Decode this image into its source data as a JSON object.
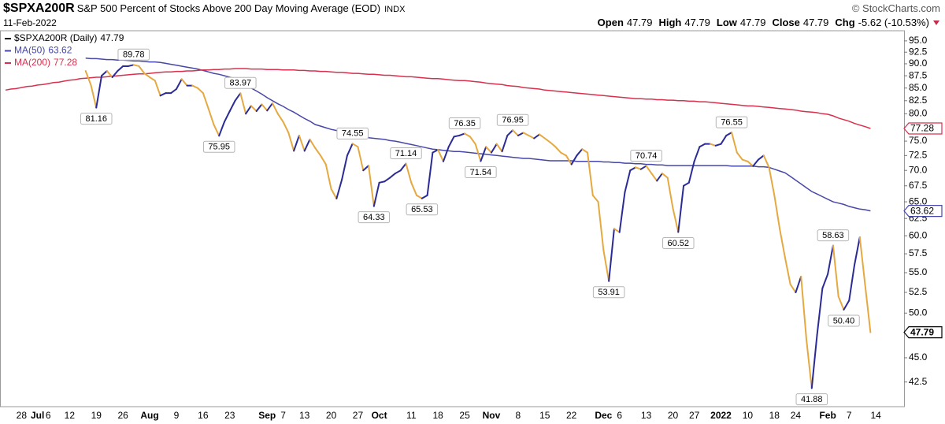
{
  "header": {
    "symbol": "$SPXA200R",
    "description": "S&P 500 Percent of Stocks Above 200 Day Moving Average (EOD)",
    "exchange": "INDX",
    "date": "11-Feb-2022",
    "source": "© StockCharts.com",
    "quote": [
      {
        "label": "Open",
        "value": 47.79
      },
      {
        "label": "High",
        "value": 47.79
      },
      {
        "label": "Low",
        "value": 47.79
      },
      {
        "label": "Close",
        "value": 47.79
      },
      {
        "label": "Chg",
        "value": "-5.62 (-10.53%)"
      }
    ]
  },
  "chart_data": {
    "type": "line",
    "log": true,
    "ylim": [
      40.1,
      97.3
    ],
    "yticks": [
      {
        "value": 42.5,
        "label": "42.5"
      },
      {
        "value": 45,
        "label": "45.0"
      },
      {
        "value": 50,
        "label": "50.0"
      },
      {
        "value": 52.5,
        "label": "52.5"
      },
      {
        "value": 55,
        "label": "55.0"
      },
      {
        "value": 57.5,
        "label": "57.5"
      },
      {
        "value": 60,
        "label": "60.0"
      },
      {
        "value": 62.5,
        "label": "62.5"
      },
      {
        "value": 65,
        "label": "65.0"
      },
      {
        "value": 67.5,
        "label": "67.5"
      },
      {
        "value": 70,
        "label": "70.0"
      },
      {
        "value": 72.5,
        "label": "72.5"
      },
      {
        "value": 75,
        "label": "75.0"
      },
      {
        "value": 77.5,
        "label": "77.5"
      },
      {
        "value": 80,
        "label": "80.0"
      },
      {
        "value": 82.5,
        "label": "82.5"
      },
      {
        "value": 85,
        "label": "85.0"
      },
      {
        "value": 87.5,
        "label": "87.5"
      },
      {
        "value": 90,
        "label": "90.0"
      },
      {
        "value": 92.5,
        "label": "92.5"
      },
      {
        "value": 95,
        "label": "95.0"
      }
    ],
    "categories": [
      null,
      null,
      null,
      "28",
      null,
      null,
      "Jul",
      null,
      "6",
      null,
      null,
      null,
      "12",
      null,
      null,
      null,
      null,
      "19",
      null,
      null,
      null,
      null,
      "26",
      null,
      null,
      null,
      null,
      "Aug",
      null,
      null,
      null,
      null,
      "9",
      null,
      null,
      null,
      null,
      "16",
      null,
      null,
      null,
      null,
      "23",
      null,
      null,
      null,
      null,
      null,
      null,
      "Sep",
      null,
      null,
      "7",
      null,
      null,
      null,
      "13",
      null,
      null,
      null,
      null,
      "20",
      null,
      null,
      null,
      null,
      "27",
      null,
      null,
      null,
      "Oct",
      null,
      null,
      null,
      null,
      null,
      "11",
      null,
      null,
      null,
      null,
      "18",
      null,
      null,
      null,
      null,
      "25",
      null,
      null,
      null,
      null,
      "Nov",
      null,
      null,
      null,
      null,
      "8",
      null,
      null,
      null,
      null,
      "15",
      null,
      null,
      null,
      null,
      "22",
      null,
      null,
      null,
      null,
      null,
      "Dec",
      null,
      null,
      "6",
      null,
      null,
      null,
      null,
      "13",
      null,
      null,
      null,
      null,
      "20",
      null,
      null,
      null,
      "27",
      null,
      null,
      null,
      null,
      "2022",
      null,
      null,
      null,
      null,
      "10",
      null,
      null,
      null,
      null,
      "18",
      null,
      null,
      null,
      "24",
      null,
      null,
      null,
      null,
      null,
      "Feb",
      null,
      null,
      null,
      "7",
      null,
      null,
      null,
      null,
      "14"
    ],
    "series": [
      {
        "name": "$SPXA200R (Daily)",
        "color": "#000000",
        "up_color": "#2b2b97",
        "down_color": "#e5a940",
        "values": [
          null,
          null,
          null,
          null,
          null,
          null,
          null,
          null,
          null,
          null,
          null,
          null,
          null,
          null,
          null,
          88.5,
          85.6,
          81.16,
          87.5,
          88.5,
          87.2,
          88.5,
          89.5,
          89.5,
          89.78,
          89.5,
          88.0,
          87.2,
          86.5,
          83.5,
          84.0,
          84.0,
          84.8,
          86.8,
          85.5,
          85.5,
          85.0,
          84.0,
          81.0,
          78.0,
          75.95,
          78.5,
          80.5,
          82.5,
          83.97,
          80.0,
          81.5,
          80.5,
          81.8,
          80.6,
          82.0,
          80.0,
          78.5,
          76.5,
          73.3,
          76.0,
          73.3,
          75.3,
          73.8,
          72.5,
          71.0,
          67.0,
          65.5,
          68.5,
          72.5,
          74.55,
          74.0,
          70.0,
          70.8,
          64.33,
          68.0,
          68.2,
          68.8,
          69.5,
          70.0,
          71.14,
          68.0,
          66.0,
          65.53,
          66.0,
          73.0,
          73.5,
          71.5,
          74.0,
          75.8,
          76.0,
          76.35,
          75.8,
          74.5,
          71.54,
          74.0,
          73.0,
          74.5,
          73.2,
          76.0,
          76.95,
          76.0,
          76.5,
          76.0,
          75.5,
          76.2,
          75.5,
          74.8,
          74.0,
          73.0,
          72.5,
          71.0,
          72.5,
          73.6,
          73.0,
          66.0,
          65.0,
          58.0,
          53.91,
          61.0,
          60.5,
          66.5,
          70.0,
          70.5,
          70.2,
          70.74,
          69.5,
          68.3,
          69.5,
          68.8,
          64.0,
          60.52,
          67.5,
          68.0,
          71.5,
          74.0,
          74.5,
          74.5,
          74.2,
          74.5,
          76.0,
          76.55,
          73.0,
          71.8,
          71.5,
          70.7,
          71.8,
          72.5,
          70.5,
          66.0,
          61.0,
          57.0,
          53.5,
          52.5,
          54.5,
          47.0,
          41.88,
          47.5,
          53.0,
          54.8,
          58.63,
          52.0,
          50.4,
          51.5,
          56.0,
          59.8,
          53.41,
          47.79,
          null
        ],
        "value_labels": [
          null,
          null,
          null,
          null,
          null,
          null,
          null,
          null,
          null,
          null,
          null,
          null,
          null,
          null,
          null,
          null,
          null,
          "81.16",
          null,
          null,
          null,
          null,
          null,
          null,
          "89.78",
          null,
          null,
          null,
          null,
          null,
          null,
          null,
          null,
          null,
          null,
          null,
          null,
          null,
          null,
          null,
          "75.95",
          null,
          null,
          null,
          "83.97",
          null,
          null,
          null,
          null,
          null,
          null,
          null,
          null,
          null,
          null,
          null,
          null,
          null,
          null,
          null,
          null,
          null,
          null,
          null,
          null,
          "74.55",
          null,
          null,
          null,
          "64.33",
          null,
          null,
          null,
          null,
          null,
          "71.14",
          null,
          null,
          "65.53",
          null,
          null,
          null,
          null,
          null,
          null,
          null,
          "76.35",
          null,
          null,
          "71.54",
          null,
          null,
          null,
          null,
          null,
          "76.95",
          null,
          null,
          null,
          null,
          null,
          null,
          null,
          null,
          null,
          null,
          null,
          null,
          null,
          null,
          null,
          null,
          null,
          "53.91",
          null,
          null,
          null,
          null,
          null,
          null,
          "70.74",
          null,
          null,
          null,
          null,
          null,
          "60.52",
          null,
          null,
          null,
          null,
          null,
          null,
          null,
          null,
          null,
          "76.55",
          null,
          null,
          null,
          null,
          null,
          null,
          null,
          null,
          null,
          null,
          null,
          null,
          null,
          null,
          "41.88",
          null,
          null,
          null,
          "58.63",
          null,
          "50.40",
          null,
          null,
          null,
          null,
          null,
          null
        ]
      },
      {
        "name": "MA(50)",
        "color": "#4747a8",
        "values": [
          null,
          null,
          null,
          null,
          null,
          null,
          null,
          null,
          null,
          null,
          null,
          null,
          null,
          null,
          null,
          91.2,
          91.1,
          91.1,
          91.0,
          90.9,
          90.9,
          90.8,
          90.8,
          90.7,
          90.6,
          90.6,
          90.5,
          90.4,
          90.4,
          90.3,
          90.1,
          89.9,
          89.7,
          89.5,
          89.3,
          89.1,
          88.9,
          88.6,
          88.3,
          88.0,
          87.8,
          87.5,
          87.2,
          86.9,
          86.3,
          85.6,
          85.0,
          84.4,
          83.8,
          83.1,
          82.5,
          81.9,
          81.4,
          80.8,
          80.3,
          79.7,
          79.1,
          78.6,
          78.0,
          77.7,
          77.4,
          77.1,
          76.9,
          76.6,
          76.3,
          76.0,
          75.9,
          75.8,
          75.6,
          75.5,
          75.4,
          75.3,
          75.1,
          75.0,
          74.8,
          74.6,
          74.4,
          74.2,
          74.0,
          73.8,
          73.6,
          73.5,
          73.4,
          73.3,
          73.2,
          73.2,
          73.1,
          73.0,
          72.9,
          72.8,
          72.7,
          72.6,
          72.5,
          72.4,
          72.3,
          72.2,
          72.1,
          72.0,
          72.0,
          71.9,
          71.8,
          71.7,
          71.6,
          71.6,
          71.6,
          71.6,
          71.6,
          71.5,
          71.5,
          71.5,
          71.5,
          71.5,
          71.4,
          71.4,
          71.3,
          71.3,
          71.2,
          71.2,
          71.1,
          71.1,
          71.0,
          71.0,
          70.9,
          70.9,
          70.8,
          70.8,
          70.8,
          70.8,
          70.8,
          70.8,
          70.8,
          70.8,
          70.8,
          70.8,
          70.8,
          70.8,
          70.7,
          70.7,
          70.7,
          70.7,
          70.7,
          70.6,
          70.6,
          70.5,
          70.2,
          69.9,
          69.6,
          69.0,
          68.4,
          67.8,
          67.2,
          66.6,
          66.2,
          65.8,
          65.4,
          65.0,
          64.8,
          64.6,
          64.3,
          64.1,
          63.9,
          63.8,
          63.62,
          null
        ]
      },
      {
        "name": "MA(200)",
        "color": "#d8304e",
        "values": [
          84.6,
          84.8,
          84.9,
          85.1,
          85.3,
          85.4,
          85.6,
          85.7,
          85.9,
          86.1,
          86.2,
          86.4,
          86.6,
          86.7,
          86.9,
          87.0,
          87.1,
          87.2,
          87.2,
          87.3,
          87.4,
          87.5,
          87.6,
          87.7,
          87.8,
          87.9,
          87.9,
          88.0,
          88.1,
          88.2,
          88.3,
          88.3,
          88.4,
          88.4,
          88.5,
          88.5,
          88.6,
          88.7,
          88.7,
          88.8,
          88.8,
          88.9,
          88.9,
          89.0,
          89.0,
          89.0,
          88.9,
          88.9,
          88.9,
          88.8,
          88.8,
          88.8,
          88.7,
          88.7,
          88.7,
          88.6,
          88.6,
          88.5,
          88.5,
          88.4,
          88.4,
          88.3,
          88.2,
          88.2,
          88.1,
          88.0,
          88.0,
          87.9,
          87.8,
          87.8,
          87.7,
          87.6,
          87.6,
          87.5,
          87.4,
          87.3,
          87.3,
          87.2,
          87.1,
          87.0,
          86.9,
          86.9,
          86.8,
          86.7,
          86.6,
          86.5,
          86.5,
          86.4,
          86.3,
          86.2,
          86.0,
          85.9,
          85.8,
          85.7,
          85.5,
          85.4,
          85.3,
          85.1,
          85.0,
          84.9,
          84.8,
          84.6,
          84.5,
          84.4,
          84.3,
          84.2,
          84.1,
          84.0,
          83.9,
          83.8,
          83.7,
          83.6,
          83.5,
          83.4,
          83.3,
          83.2,
          83.1,
          83.0,
          82.9,
          82.9,
          82.8,
          82.8,
          82.7,
          82.7,
          82.6,
          82.6,
          82.5,
          82.5,
          82.4,
          82.4,
          82.3,
          82.3,
          82.2,
          82.1,
          82.0,
          81.9,
          81.8,
          81.7,
          81.6,
          81.5,
          81.5,
          81.4,
          81.3,
          81.2,
          81.1,
          81.0,
          80.9,
          80.8,
          80.7,
          80.5,
          80.4,
          80.3,
          80.2,
          80.0,
          79.9,
          79.6,
          79.2,
          78.9,
          78.6,
          78.2,
          77.9,
          77.6,
          77.28,
          null
        ]
      }
    ]
  }
}
